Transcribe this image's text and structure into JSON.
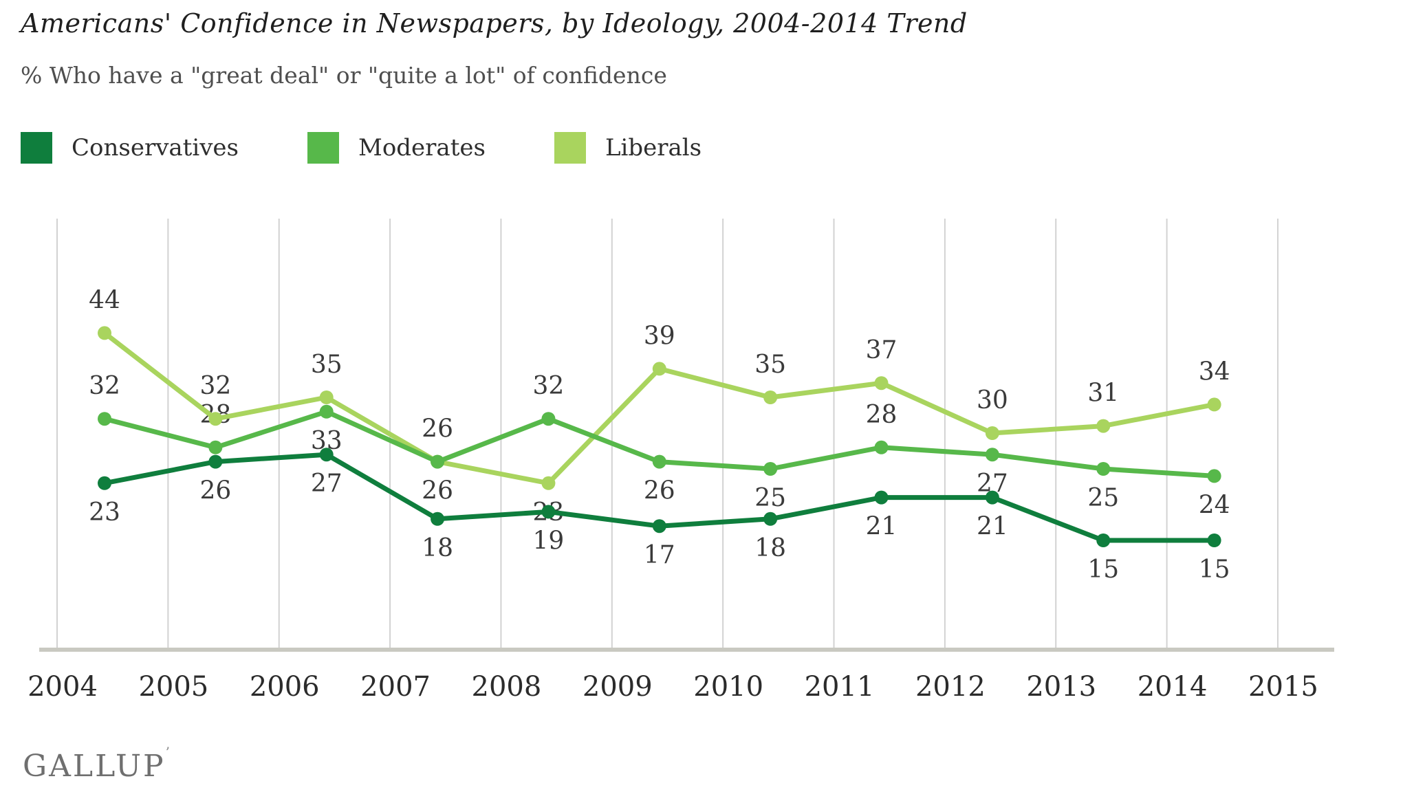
{
  "title": "Americans' Confidence in Newspapers, by Ideology, 2004-2014 Trend",
  "subtitle": "% Who have a \"great deal\" or \"quite a lot\" of confidence",
  "legend": {
    "items": [
      {
        "label": "Conservatives",
        "color": "#0f7e3d"
      },
      {
        "label": "Moderates",
        "color": "#57b84a"
      },
      {
        "label": "Liberals",
        "color": "#a9d45e"
      }
    ]
  },
  "footer": {
    "brand": "GALLUP",
    "brand_mark": "’"
  },
  "colors": {
    "gridline": "#d2d2d2",
    "baseline": "#c9c9c1",
    "data_label": "#3a3a3a",
    "year_label": "#2b2b2b"
  },
  "chart_data": {
    "type": "line",
    "title": "Americans' Confidence in Newspapers, by Ideology, 2004-2014 Trend",
    "subtitle": "% Who have a \"great deal\" or \"quite a lot\" of confidence",
    "x": [
      2004,
      2005,
      2006,
      2007,
      2008,
      2009,
      2010,
      2011,
      2012,
      2013,
      2014
    ],
    "x_axis_ticks": [
      "2004",
      "2005",
      "2006",
      "2007",
      "2008",
      "2009",
      "2010",
      "2011",
      "2012",
      "2013",
      "2014",
      "2015"
    ],
    "xlabel": "",
    "ylabel": "",
    "ylim": [
      0,
      60
    ],
    "grid": "vertical-only",
    "legend_position": "top-left",
    "series": [
      {
        "name": "Liberals",
        "color": "#a9d45e",
        "values": [
          44,
          32,
          35,
          26,
          23,
          39,
          35,
          37,
          30,
          31,
          34
        ],
        "label_pos": [
          "above",
          "above",
          "above",
          "below",
          "below",
          "above",
          "above",
          "above",
          "above",
          "above",
          "above"
        ]
      },
      {
        "name": "Moderates",
        "color": "#57b84a",
        "values": [
          32,
          28,
          33,
          26,
          32,
          26,
          25,
          28,
          27,
          25,
          24
        ],
        "label_pos": [
          "above",
          "above",
          "below",
          "above",
          "above",
          "below",
          "below",
          "above",
          "below",
          "below",
          "below"
        ]
      },
      {
        "name": "Conservatives",
        "color": "#0f7e3d",
        "values": [
          23,
          26,
          27,
          18,
          19,
          17,
          18,
          21,
          21,
          15,
          15
        ],
        "label_pos": [
          "below",
          "below",
          "below",
          "below",
          "below",
          "below",
          "below",
          "below",
          "below",
          "below",
          "below"
        ]
      }
    ]
  }
}
